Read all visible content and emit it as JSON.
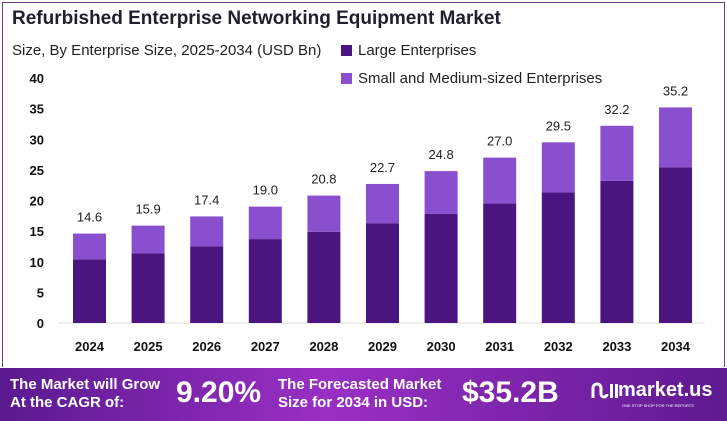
{
  "chart_data": {
    "type": "bar",
    "stacked": true,
    "title": "Refurbished Enterprise Networking Equipment Market",
    "subtitle": "Size, By Enterprise Size, 2025-2034 (USD Bn)",
    "categories": [
      "2024",
      "2025",
      "2026",
      "2027",
      "2028",
      "2029",
      "2030",
      "2031",
      "2032",
      "2033",
      "2034"
    ],
    "series": [
      {
        "name": "Large Enterprises",
        "color": "#4b1580",
        "values": [
          10.4,
          11.4,
          12.5,
          13.7,
          14.9,
          16.3,
          17.8,
          19.5,
          21.3,
          23.2,
          25.4
        ]
      },
      {
        "name": "Small and Medium-sized Enterprises",
        "color": "#8a4fcf",
        "values": [
          4.2,
          4.5,
          4.9,
          5.3,
          5.9,
          6.4,
          7.0,
          7.5,
          8.2,
          9.0,
          9.8
        ]
      }
    ],
    "totals": [
      "14.6",
      "15.9",
      "17.4",
      "19.0",
      "20.8",
      "22.7",
      "24.8",
      "27.0",
      "29.5",
      "32.2",
      "35.2"
    ],
    "ylim": [
      0,
      40
    ],
    "yticks": [
      "0",
      "5",
      "10",
      "15",
      "20",
      "25",
      "30",
      "35",
      "40"
    ],
    "grid": false,
    "legend_placement": "top"
  },
  "footer": {
    "cagr_label_1": "The Market will Grow",
    "cagr_label_2": "At the CAGR of:",
    "cagr_value": "9.20%",
    "forecast_label_1": "The Forecasted Market",
    "forecast_label_2": "Size for 2034 in USD:",
    "forecast_value": "$35.2B",
    "brand": "market.us",
    "tagline": "ONE STOP SHOP FOR THE REPORTS"
  }
}
